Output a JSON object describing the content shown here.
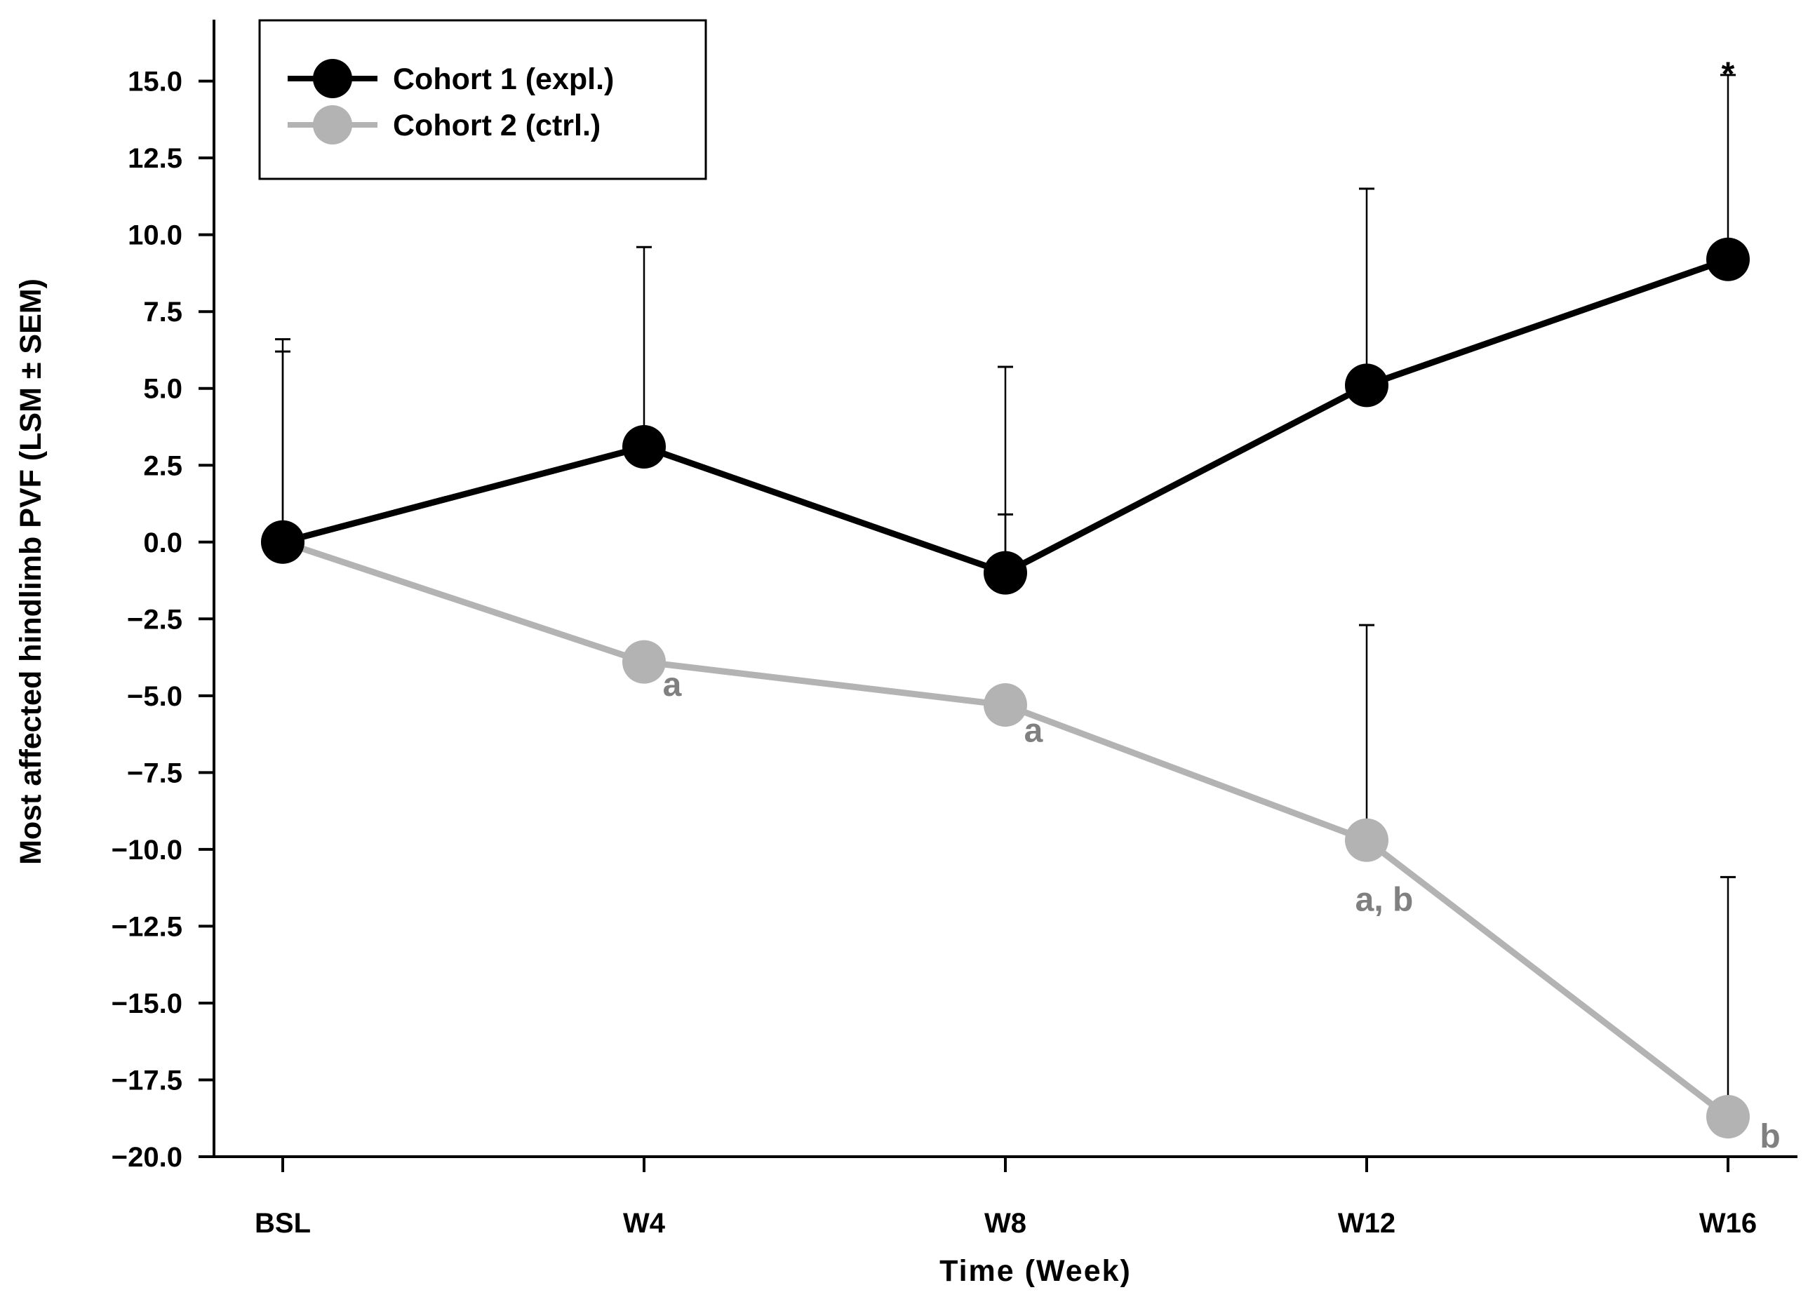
{
  "chart_data": {
    "type": "line",
    "title": "",
    "xlabel": "Time (Week)",
    "ylabel": "Most affected hindlimb PVF (LSM ± SEM)",
    "categories": [
      "BSL",
      "W4",
      "W8",
      "W12",
      "W16"
    ],
    "ylim": [
      -20.0,
      17.0
    ],
    "yticks": [
      15.0,
      12.5,
      10.0,
      7.5,
      5.0,
      2.5,
      0.0,
      -2.5,
      -5.0,
      -7.5,
      -10.0,
      -12.5,
      -15.0,
      -17.5,
      -20.0
    ],
    "ytick_labels": [
      "15.0",
      "12.5",
      "10.0",
      "7.5",
      "5.0",
      "2.5",
      "0.0",
      "−2.5",
      "−5.0",
      "−7.5",
      "−10.0",
      "−12.5",
      "−15.0",
      "−17.5",
      "−20.0"
    ],
    "series": [
      {
        "name": "Cohort 1 (expl.)",
        "color": "#000000",
        "values": [
          0.0,
          3.1,
          -1.0,
          5.1,
          9.2
        ],
        "err_upper": [
          6.2,
          9.6,
          5.7,
          11.5,
          15.2
        ],
        "err_lower": [
          null,
          null,
          0.9,
          null,
          null
        ]
      },
      {
        "name": "Cohort 2 (ctrl.)",
        "color": "#b3b3b3",
        "values": [
          0.0,
          -3.9,
          -5.3,
          -9.7,
          -18.7
        ],
        "err_upper": [
          6.6,
          null,
          null,
          -2.7,
          -10.9
        ],
        "err_lower": [
          null,
          null,
          null,
          null,
          null
        ]
      }
    ],
    "annotations": [
      {
        "text": "a",
        "category": "W4",
        "y": -5.0,
        "color": "#808080"
      },
      {
        "text": "a",
        "category": "W8",
        "y": -6.5,
        "color": "#808080"
      },
      {
        "text": "a, b",
        "category": "W12",
        "y": -12.0,
        "color": "#808080"
      },
      {
        "text": "b",
        "category": "W16",
        "y": -19.7,
        "color": "#808080"
      },
      {
        "text": "*",
        "category": "W16",
        "y": 15.5,
        "color": "#000000"
      }
    ],
    "legend": {
      "position": "top-left"
    }
  }
}
